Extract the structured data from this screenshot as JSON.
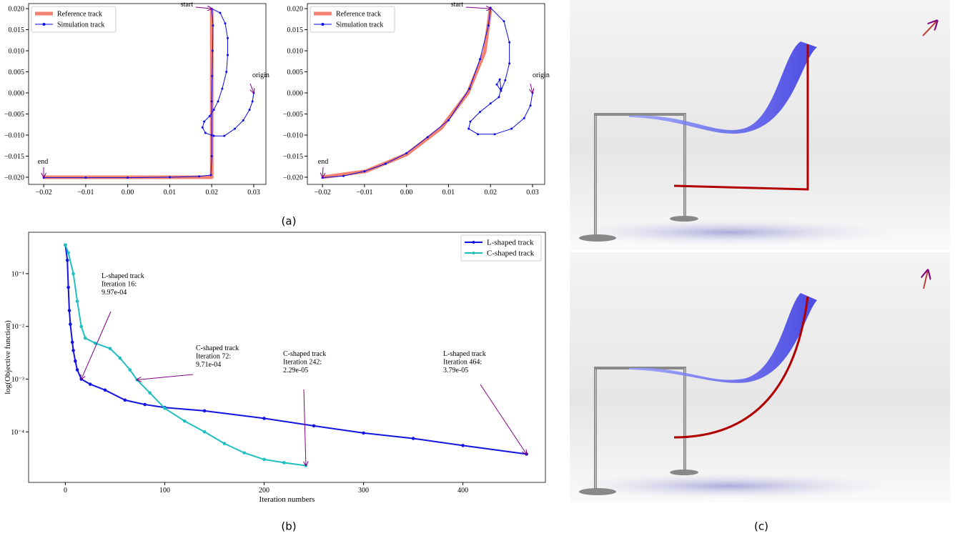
{
  "captions": [
    "(a)",
    "(b)",
    "(c)"
  ],
  "chart_data": [
    {
      "type": "line",
      "legend": "upper left",
      "xlim": [
        -0.0236,
        0.0329
      ],
      "ylim": [
        -0.0217,
        0.0212
      ],
      "xticks": [
        {
          "value": -0.02,
          "label": "−0.02"
        },
        {
          "value": -0.01,
          "label": "−0.01"
        },
        {
          "value": 0,
          "label": "0.00"
        },
        {
          "value": 0.01,
          "label": "0.01"
        },
        {
          "value": 0.02,
          "label": "0.02"
        },
        {
          "value": 0.03,
          "label": "0.03"
        }
      ],
      "yticks": [
        {
          "value": 0.02,
          "label": "0.020"
        },
        {
          "value": 0.015,
          "label": "0.015"
        },
        {
          "value": 0.01,
          "label": "0.010"
        },
        {
          "value": 0.005,
          "label": "0.005"
        },
        {
          "value": 0,
          "label": "0.000"
        },
        {
          "value": -0.005,
          "label": "−0.005"
        },
        {
          "value": -0.01,
          "label": "−0.010"
        },
        {
          "value": -0.015,
          "label": "−0.015"
        },
        {
          "value": -0.02,
          "label": "−0.020"
        }
      ],
      "series": [
        {
          "name": "Reference track",
          "color": "#f4806f",
          "line_width": 5,
          "markers": false,
          "x": [
            0.02,
            0.02,
            0.02,
            -0.02
          ],
          "values": [
            0.02,
            0,
            -0.02,
            -0.02
          ]
        },
        {
          "name": "Simulation track",
          "color": "#0a0ae6",
          "line_width": 1,
          "markers": true,
          "x": [
            0.03,
            0.0297,
            0.029,
            0.0275,
            0.0255,
            0.023,
            0.0205,
            0.0185,
            0.0178,
            0.0182,
            0.0195,
            0.0205,
            0.0215,
            0.0225,
            0.0235,
            0.0238,
            0.0238,
            0.0232,
            0.022,
            0.02,
            0.0203,
            0.0202,
            0.0201,
            0.02,
            0.02,
            0.02,
            0.0198,
            0.017,
            0.01,
            0,
            -0.01,
            -0.02
          ],
          "values": [
            0,
            -0.002,
            -0.004,
            -0.0065,
            -0.0085,
            -0.0102,
            -0.0102,
            -0.0095,
            -0.0082,
            -0.0068,
            -0.0055,
            -0.004,
            -0.002,
            0.001,
            0.005,
            0.009,
            0.013,
            0.0165,
            0.019,
            0.02,
            0.016,
            0.01,
            0.004,
            -0.002,
            -0.01,
            -0.015,
            -0.0195,
            -0.0198,
            -0.02,
            -0.0201,
            -0.0201,
            -0.0201
          ]
        }
      ],
      "annotations": [
        {
          "text": [
            "start"
          ],
          "x": 0.02,
          "y": 0.02
        },
        {
          "text": [
            "origin"
          ],
          "x": 0.03,
          "y": 0
        },
        {
          "text": [
            "end"
          ],
          "x": -0.02,
          "y": -0.02
        }
      ]
    },
    {
      "type": "line",
      "legend": "upper left",
      "xlim": [
        -0.0236,
        0.0329
      ],
      "ylim": [
        -0.0217,
        0.0212
      ],
      "xticks": [
        {
          "value": -0.02,
          "label": "−0.02"
        },
        {
          "value": -0.01,
          "label": "−0.01"
        },
        {
          "value": 0,
          "label": "0.00"
        },
        {
          "value": 0.01,
          "label": "0.01"
        },
        {
          "value": 0.02,
          "label": "0.02"
        },
        {
          "value": 0.03,
          "label": "0.03"
        }
      ],
      "yticks": [
        {
          "value": 0.02,
          "label": "0.020"
        },
        {
          "value": 0.015,
          "label": "0.015"
        },
        {
          "value": 0.01,
          "label": "0.010"
        },
        {
          "value": 0.005,
          "label": "0.005"
        },
        {
          "value": 0,
          "label": "0.000"
        },
        {
          "value": -0.005,
          "label": "−0.005"
        },
        {
          "value": -0.01,
          "label": "−0.010"
        },
        {
          "value": -0.015,
          "label": "−0.015"
        },
        {
          "value": -0.02,
          "label": "−0.020"
        }
      ],
      "series": [
        {
          "name": "Reference track",
          "color": "#f4806f",
          "line_width": 5,
          "markers": false,
          "x": [
            -0.02,
            -0.0097,
            0,
            0.0083,
            0.0146,
            0.0186,
            0.02
          ],
          "values": [
            -0.02,
            -0.0186,
            -0.0146,
            -0.0083,
            0,
            0.0097,
            0.02
          ]
        },
        {
          "name": "Simulation track",
          "color": "#0a0ae6",
          "line_width": 1,
          "markers": true,
          "x": [
            0.03,
            0.0295,
            0.028,
            0.025,
            0.021,
            0.017,
            0.0148,
            0.0152,
            0.0175,
            0.02,
            0.022,
            0.0225,
            0.0222,
            0.0215,
            0.0225,
            0.0235,
            0.0245,
            0.0245,
            0.0232,
            0.02,
            0.0195,
            0.0175,
            0.015,
            0.01,
            0.005,
            0,
            -0.005,
            -0.01,
            -0.015,
            -0.02
          ],
          "values": [
            0,
            -0.003,
            -0.006,
            -0.0085,
            -0.0098,
            -0.0098,
            -0.0085,
            -0.0068,
            -0.0045,
            -0.0025,
            -0.001,
            0.001,
            0.0032,
            0.002,
            0.0005,
            0.003,
            0.007,
            0.012,
            0.017,
            0.0202,
            0.016,
            0.008,
            0.001,
            -0.0065,
            -0.0105,
            -0.0143,
            -0.0168,
            -0.0186,
            -0.0197,
            -0.0201
          ]
        }
      ],
      "annotations": [
        {
          "text": [
            "start"
          ],
          "x": 0.02,
          "y": 0.02
        },
        {
          "text": [
            "origin"
          ],
          "x": 0.03,
          "y": 0
        },
        {
          "text": [
            "end"
          ],
          "x": -0.02,
          "y": -0.02
        }
      ]
    },
    {
      "type": "line",
      "legend": "upper right",
      "yscale": "log",
      "x_label": "Iteration numbers",
      "y_label": "log(Objective function)",
      "xlim": [
        -37,
        483
      ],
      "ylim": [
        1.1e-05,
        0.61
      ],
      "xticks": [
        0,
        100,
        200,
        300,
        400
      ],
      "yticks": [
        {
          "value": 0.0001,
          "label": "10⁻⁴"
        },
        {
          "value": 0.001,
          "label": "10⁻³"
        },
        {
          "value": 0.01,
          "label": "10⁻²"
        },
        {
          "value": 0.1,
          "label": "10⁻¹"
        }
      ],
      "series": [
        {
          "name": "L-shaped track",
          "color": "#1414e0",
          "line_width": 2,
          "markers": true,
          "x": [
            0,
            2,
            3,
            4,
            5,
            7,
            8,
            10,
            12,
            16,
            25,
            40,
            60,
            80,
            100,
            140,
            200,
            250,
            300,
            350,
            400,
            464
          ],
          "values": [
            0.35,
            0.18,
            0.055,
            0.02,
            0.011,
            0.005,
            0.0035,
            0.0022,
            0.0015,
            0.001,
            0.0008,
            0.00062,
            0.0004,
            0.00033,
            0.00029,
            0.00025,
            0.00018,
            0.00013,
            9.5e-05,
            7.5e-05,
            5.5e-05,
            3.79e-05
          ]
        },
        {
          "name": "C-shaped track",
          "color": "#1fbfbf",
          "line_width": 2,
          "markers": true,
          "x": [
            0,
            3,
            8,
            12,
            16,
            20,
            30,
            45,
            55,
            65,
            72,
            85,
            100,
            120,
            140,
            160,
            180,
            200,
            220,
            242
          ],
          "values": [
            0.35,
            0.25,
            0.1,
            0.03,
            0.01,
            0.006,
            0.0048,
            0.0038,
            0.0025,
            0.0015,
            0.00097,
            0.00055,
            0.00028,
            0.00016,
            0.0001,
            6e-05,
            4e-05,
            3e-05,
            2.6e-05,
            2.29e-05
          ]
        }
      ],
      "annotations": [
        {
          "text": [
            "L-shaped track",
            "Iteration 16:",
            "9.97e-04"
          ],
          "x": 16,
          "y": 0.000997
        },
        {
          "text": [
            "C-shaped track",
            "Iteration 72:",
            "9.71e-04"
          ],
          "x": 72,
          "y": 0.000971
        },
        {
          "text": [
            "C-shaped track",
            "Iteration 242:",
            "2.29e-05"
          ],
          "x": 242,
          "y": 2.29e-05
        },
        {
          "text": [
            "L-shaped track",
            "Iteration 464:",
            "3.79e-05"
          ],
          "x": 464,
          "y": 3.79e-05
        }
      ]
    }
  ]
}
